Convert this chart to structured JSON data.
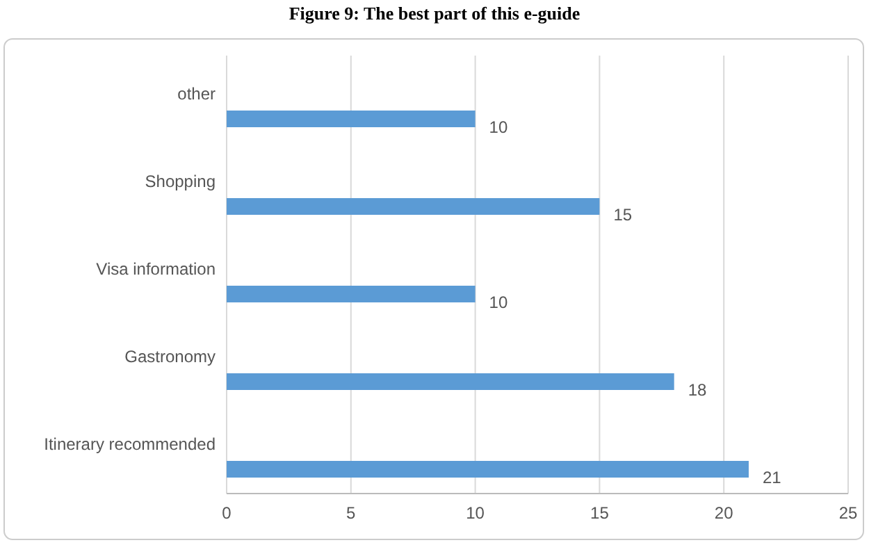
{
  "chart_data": {
    "type": "bar",
    "orientation": "horizontal",
    "title": "Figure 9:   The best part of this e-guide",
    "categories": [
      "other",
      "Shopping",
      "Visa information",
      "Gastronomy",
      "Itinerary recommended"
    ],
    "values": [
      10,
      15,
      10,
      18,
      21
    ],
    "color": "#5b9bd5",
    "xlim": [
      0,
      25
    ],
    "xticks": [
      0,
      5,
      10,
      15,
      20,
      25
    ],
    "grid": "x",
    "data_labels": true
  }
}
